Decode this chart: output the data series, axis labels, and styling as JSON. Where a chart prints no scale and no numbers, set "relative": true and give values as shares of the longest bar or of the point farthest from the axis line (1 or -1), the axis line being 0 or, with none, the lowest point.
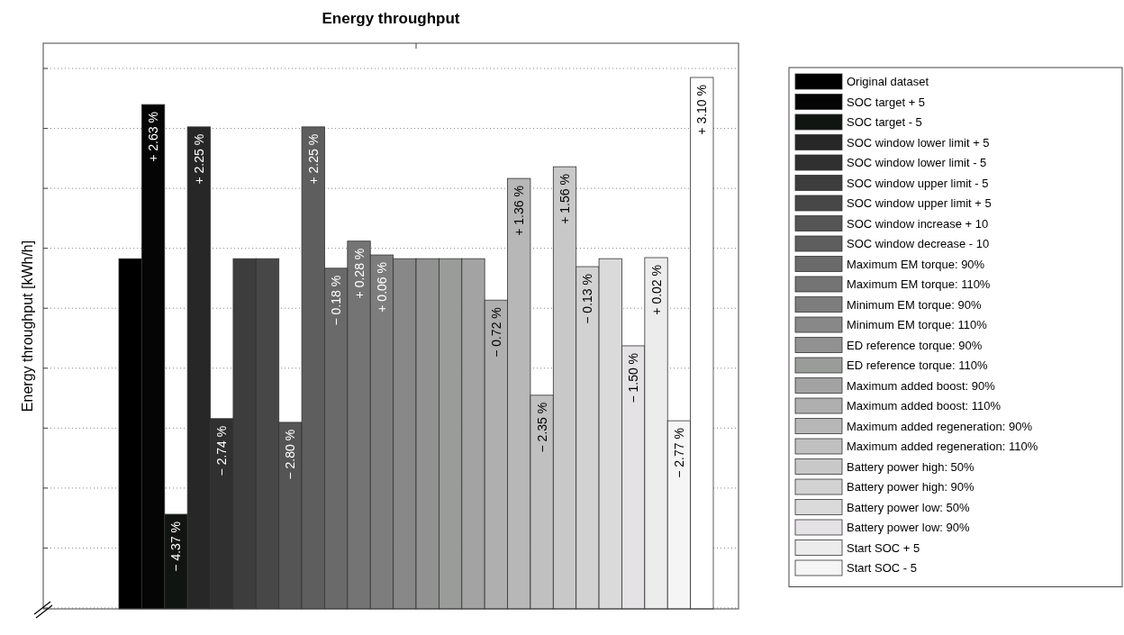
{
  "chart_data": {
    "type": "bar",
    "title": "Energy throughput",
    "ylabel": "Energy throughput [kWh/h]",
    "relative": true,
    "grid": "y",
    "legend": "right",
    "categories": [
      null
    ],
    "series": [
      {
        "name": "Original dataset",
        "color": "#000000",
        "values": [
          0.659
        ]
      },
      {
        "name": "SOC target + 5",
        "color": "#050505",
        "values": [
          0.949
        ]
      },
      {
        "name": "SOC target - 5",
        "color": "#111511",
        "values": [
          0.178
        ]
      },
      {
        "name": "SOC window lower limit + 5",
        "color": "#272727",
        "values": [
          0.907
        ]
      },
      {
        "name": "SOC window lower limit - 5",
        "color": "#303030",
        "values": [
          0.358
        ]
      },
      {
        "name": "SOC window upper limit - 5",
        "color": "#3d3d3d",
        "values": [
          0.659
        ]
      },
      {
        "name": "SOC window upper limit + 5",
        "color": "#474747",
        "values": [
          0.659
        ]
      },
      {
        "name": "SOC window increase + 10",
        "color": "#555555",
        "values": [
          0.351
        ]
      },
      {
        "name": "SOC window decrease - 10",
        "color": "#5e5e5e",
        "values": [
          0.907
        ]
      },
      {
        "name": "Maximum EM torque: 90%",
        "color": "#6a6a6a",
        "values": [
          0.641
        ]
      },
      {
        "name": "Maximum EM torque: 110%",
        "color": "#747474",
        "values": [
          0.692
        ]
      },
      {
        "name": "Minimum EM torque: 90%",
        "color": "#7d7d7d",
        "values": [
          0.666
        ]
      },
      {
        "name": "Minimum EM torque: 110%",
        "color": "#888888",
        "values": [
          0.659
        ]
      },
      {
        "name": "ED reference torque: 90%",
        "color": "#919191",
        "values": [
          0.659
        ]
      },
      {
        "name": "ED reference torque: 110%",
        "color": "#999c99",
        "values": [
          0.659
        ]
      },
      {
        "name": "Maximum added boost: 90%",
        "color": "#a3a3a3",
        "values": [
          0.659
        ]
      },
      {
        "name": "Maximum added boost: 110%",
        "color": "#afafaf",
        "values": [
          0.581
        ]
      },
      {
        "name": "Maximum added regeneration: 90%",
        "color": "#b7b7b7",
        "values": [
          0.81
        ]
      },
      {
        "name": "Maximum added regeneration: 110%",
        "color": "#c0c0c0",
        "values": [
          0.402
        ]
      },
      {
        "name": "Battery power high: 50%",
        "color": "#c8c8c8",
        "values": [
          0.832
        ]
      },
      {
        "name": "Battery power high: 90%",
        "color": "#d2d2d2",
        "values": [
          0.644
        ]
      },
      {
        "name": "Battery power low: 50%",
        "color": "#dadada",
        "values": [
          0.659
        ]
      },
      {
        "name": "Battery power low: 90%",
        "color": "#e4e2e4",
        "values": [
          0.495
        ]
      },
      {
        "name": "Start SOC + 5",
        "color": "#ececec",
        "values": [
          0.661
        ]
      },
      {
        "name": "Start SOC - 5",
        "color": "#f5f5f5",
        "values": [
          0.354
        ]
      },
      {
        "color": "#ffffff",
        "values": [
          1
        ]
      }
    ],
    "annotations": [
      {
        "text": "+ 2.63 %",
        "y": 0.949
      },
      {
        "text": "− 4.37 %",
        "y": 0.178
      },
      {
        "text": "+ 2.25 %",
        "y": 0.907
      },
      {
        "text": "− 2.74 %",
        "y": 0.358
      },
      {
        "text": "− 2.80 %",
        "y": 0.351
      },
      {
        "text": "+ 2.25 %",
        "y": 0.907
      },
      {
        "text": "− 0.18 %",
        "y": 0.641
      },
      {
        "text": "+ 0.28 %",
        "y": 0.692
      },
      {
        "text": "+ 0.06 %",
        "y": 0.666
      },
      {
        "text": "− 0.72 %",
        "y": 0.581
      },
      {
        "text": "+ 1.36 %",
        "y": 0.81
      },
      {
        "text": "− 2.35 %",
        "y": 0.402
      },
      {
        "text": "+ 1.56 %",
        "y": 0.832
      },
      {
        "text": "− 0.13 %",
        "y": 0.644
      },
      {
        "text": "− 1.50 %",
        "y": 0.495
      },
      {
        "text": "+ 0.02 %",
        "y": 0.661
      },
      {
        "text": "− 2.77 %",
        "y": 0.354
      },
      {
        "text": "+ 3.10 %",
        "y": 1
      }
    ]
  }
}
